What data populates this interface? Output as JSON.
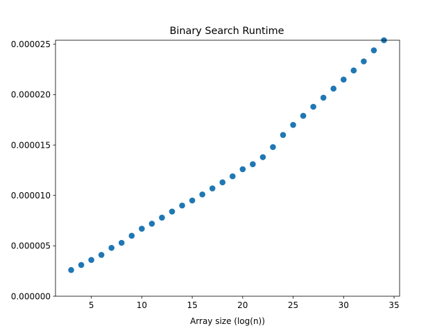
{
  "chart_data": {
    "type": "scatter",
    "title": "Binary Search Runtime",
    "xlabel": "Array size (log(n))",
    "ylabel": "",
    "xlim": [
      1.45,
      35.55
    ],
    "ylim": [
      0,
      2.54e-05
    ],
    "xticks": [
      5,
      10,
      15,
      20,
      25,
      30,
      35
    ],
    "xtick_labels": [
      "5",
      "10",
      "15",
      "20",
      "25",
      "30",
      "35"
    ],
    "yticks": [
      0,
      5e-06,
      1e-05,
      1.5e-05,
      2e-05,
      2.5e-05
    ],
    "ytick_labels": [
      "0.000000",
      "0.000005",
      "0.000010",
      "0.000015",
      "0.000020",
      "0.000025"
    ],
    "grid": false,
    "color": "#1f77b4",
    "series": [
      {
        "x": [
          3,
          4,
          5,
          6,
          7,
          8,
          9,
          10,
          11,
          12,
          13,
          14,
          15,
          16,
          17,
          18,
          19,
          20,
          21,
          22,
          23,
          24,
          25,
          26,
          27,
          28,
          29,
          30,
          31,
          32,
          33,
          34
        ],
        "y": [
          2.6e-06,
          3.1e-06,
          3.6e-06,
          4.1e-06,
          4.8e-06,
          5.3e-06,
          6e-06,
          6.7e-06,
          7.2e-06,
          7.8e-06,
          8.4e-06,
          9e-06,
          9.5e-06,
          1.01e-05,
          1.07e-05,
          1.13e-05,
          1.19e-05,
          1.26e-05,
          1.31e-05,
          1.38e-05,
          1.48e-05,
          1.6e-05,
          1.7e-05,
          1.79e-05,
          1.88e-05,
          1.97e-05,
          2.06e-05,
          2.15e-05,
          2.24e-05,
          2.33e-05,
          2.44e-05,
          2.54e-05
        ]
      }
    ]
  }
}
